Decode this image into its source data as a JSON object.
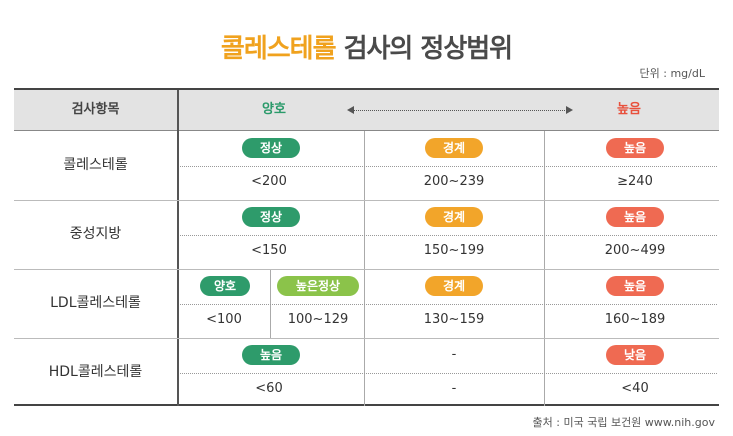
{
  "title": {
    "highlight": "콜레스테롤",
    "rest": " 검사의 정상범위"
  },
  "unit": "단위 : mg/dL",
  "header": {
    "item": "검사항목",
    "good": "양호",
    "high": "높음"
  },
  "colors": {
    "green": "#2e9b6b",
    "lightgreen": "#8bc34a",
    "orange": "#f2a52a",
    "red": "#ef6a52"
  },
  "rows": [
    {
      "name": "콜레스테롤",
      "good": {
        "tag": "정상",
        "value": "<200"
      },
      "border": {
        "tag": "경계",
        "value": "200~239"
      },
      "high": {
        "tag": "높음",
        "value": "≥240"
      }
    },
    {
      "name": "중성지방",
      "good": {
        "tag": "정상",
        "value": "<150"
      },
      "border": {
        "tag": "경계",
        "value": "150~199"
      },
      "high": {
        "tag": "높음",
        "value": "200~499"
      }
    },
    {
      "name": "LDL콜레스테롤",
      "good": {
        "tag": "양호",
        "value": "<100"
      },
      "good2": {
        "tag": "높은정상",
        "value": "100~129"
      },
      "border": {
        "tag": "경계",
        "value": "130~159"
      },
      "high": {
        "tag": "높음",
        "value": "160~189"
      }
    },
    {
      "name": "HDL콜레스테롤",
      "good": {
        "tag": "높음",
        "value": "<60"
      },
      "border": {
        "tag": "-",
        "value": "-"
      },
      "high": {
        "tag": "낮음",
        "value": "<40"
      }
    }
  ],
  "source": "출처 : 미국 국립 보건원 www.nih.gov"
}
